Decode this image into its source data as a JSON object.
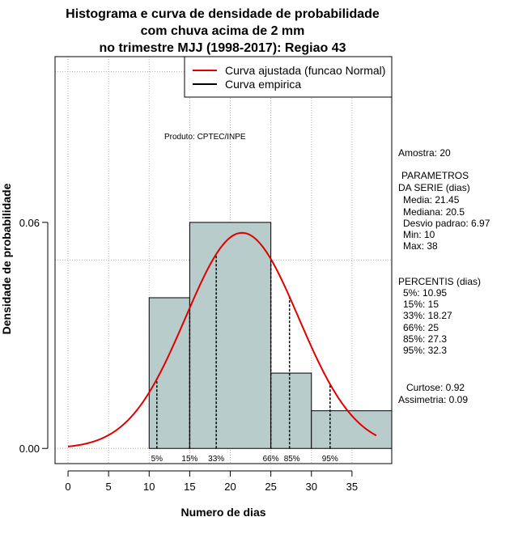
{
  "chart_data": {
    "type": "histogram",
    "title": [
      "Histograma e curva de densidade de probabilidade",
      "com chuva acima de 2 mm",
      "no trimestre MJJ (1998-2017): Regiao 43"
    ],
    "xlabel": "Numero de dias",
    "ylabel": "Densidade de probabilidade",
    "xlim": [
      -1.6,
      39.9
    ],
    "ylim": [
      -0.00403,
      0.104
    ],
    "x_ticks": [
      "0",
      "5",
      "10",
      "15",
      "20",
      "25",
      "30",
      "35"
    ],
    "y_ticks": [
      "0.00",
      "0.06"
    ],
    "bins": [
      {
        "from": 10,
        "to": 15,
        "density": 0.04
      },
      {
        "from": 15,
        "to": 25,
        "density": 0.06
      },
      {
        "from": 25,
        "to": 30,
        "density": 0.02
      },
      {
        "from": 30,
        "to": 40,
        "density": 0.01
      }
    ],
    "grid": true,
    "bar_color": "#b8cccc",
    "curve_color": "#e00000",
    "normal_fit": {
      "mean": 21.45,
      "sd": 6.97,
      "from": 0,
      "to": 38
    },
    "percentile_markers": [
      {
        "x": 10.95,
        "label": "5%"
      },
      {
        "x": 15,
        "label": "15%"
      },
      {
        "x": 18.27,
        "label": "33%"
      },
      {
        "x": 25,
        "label": "66%"
      },
      {
        "x": 27.3,
        "label": "85%"
      },
      {
        "x": 32.3,
        "label": "95%"
      }
    ],
    "legend": [
      {
        "label": "Curva ajustada (funcao Normal)",
        "color": "#e00000"
      },
      {
        "label": "Curva empirica",
        "color": "#000000"
      }
    ],
    "legend_position": "top-right",
    "annotation": "Produto: CPTEC/INPE",
    "side_text": [
      "Amostra: 20",
      "PARAMETROS",
      "DA SERIE (dias)",
      "Media: 21.45",
      "Mediana: 20.5",
      "Desvio padrao: 6.97",
      "Min: 10",
      "Max: 38",
      "PERCENTIS (dias)",
      "5%: 10.95",
      "15%: 15",
      "33%: 18.27",
      "66%: 25",
      "85%: 27.3",
      "95%: 32.3",
      "Curtose: 0.92",
      "Assimetria: 0.09"
    ]
  }
}
